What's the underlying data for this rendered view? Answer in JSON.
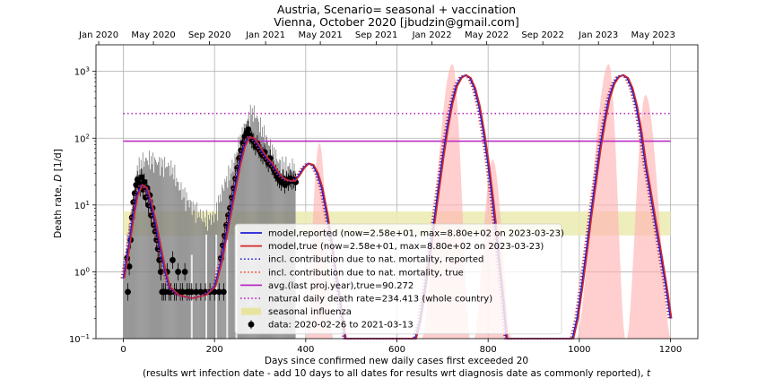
{
  "chart_data": {
    "type": "line",
    "title": "Austria, Scenario= seasonal + vaccination",
    "subtitle": "Vienna, October 2020 [jbudzin@gmail.com]",
    "xlabel": "Days since confirmed new daily cases first exceeded 20",
    "xlabel2": "(results wrt infection date - add 10 days to all dates for results wrt diagnosis date as commonly reported),",
    "xlabel_symbol": "t",
    "ylabel": "Death rate,",
    "ylabel_symbol": "D",
    "ylabel_unit": "[1/d]",
    "xlim": [
      -60,
      1260
    ],
    "ylim": [
      0.1,
      2500
    ],
    "yscale": "log",
    "grid": true,
    "legend_position": "center-left",
    "x_ticks": [
      0,
      200,
      400,
      600,
      800,
      1000,
      1200
    ],
    "y_ticks": [
      {
        "value": 0.1,
        "base": "10",
        "exp": "−1"
      },
      {
        "value": 1,
        "base": "10",
        "exp": "0"
      },
      {
        "value": 10,
        "base": "10",
        "exp": "1"
      },
      {
        "value": 100,
        "base": "10",
        "exp": "2"
      },
      {
        "value": 1000,
        "base": "10",
        "exp": "3"
      }
    ],
    "date_ticks": [
      {
        "x": -54,
        "label": "Jan 2020"
      },
      {
        "x": 66,
        "label": "May 2020"
      },
      {
        "x": 189,
        "label": "Sep 2020"
      },
      {
        "x": 312,
        "label": "Jan 2021"
      },
      {
        "x": 432,
        "label": "May 2021"
      },
      {
        "x": 555,
        "label": "Sep 2021"
      },
      {
        "x": 677,
        "label": "Jan 2022"
      },
      {
        "x": 797,
        "label": "May 2022"
      },
      {
        "x": 920,
        "label": "Sep 2022"
      },
      {
        "x": 1042,
        "label": "Jan 2023"
      },
      {
        "x": 1162,
        "label": "May 2023"
      }
    ],
    "reference_lines": {
      "avg_last_year": 90.272,
      "natural_daily_death_rate": 234.413,
      "influenza_band": [
        3.5,
        8.0
      ],
      "x_range": [
        0,
        1200
      ]
    },
    "data_bar_points": [
      [
        0,
        1.2
      ],
      [
        20,
        10
      ],
      [
        30,
        35
      ],
      [
        40,
        45
      ],
      [
        50,
        48
      ],
      [
        60,
        48
      ],
      [
        70,
        45
      ],
      [
        80,
        42
      ],
      [
        90,
        40
      ],
      [
        100,
        38
      ],
      [
        110,
        32
      ],
      [
        120,
        20
      ],
      [
        140,
        12
      ],
      [
        160,
        8
      ],
      [
        180,
        6
      ],
      [
        200,
        7
      ],
      [
        210,
        12
      ],
      [
        220,
        20
      ],
      [
        240,
        40
      ],
      [
        250,
        70
      ],
      [
        260,
        120
      ],
      [
        270,
        180
      ],
      [
        280,
        260
      ],
      [
        290,
        220
      ],
      [
        300,
        150
      ],
      [
        310,
        110
      ],
      [
        320,
        80
      ],
      [
        330,
        60
      ],
      [
        340,
        45
      ],
      [
        350,
        40
      ],
      [
        360,
        38
      ],
      [
        376,
        38
      ]
    ],
    "data_dots": [
      [
        8,
        1.6
      ],
      [
        10,
        0.5
      ],
      [
        13,
        1.2
      ],
      [
        16,
        3.0
      ],
      [
        19,
        6.5
      ],
      [
        22,
        11
      ],
      [
        25,
        15
      ],
      [
        28,
        20
      ],
      [
        31,
        24
      ],
      [
        34,
        21
      ],
      [
        37,
        18
      ],
      [
        40,
        26
      ],
      [
        43,
        17
      ],
      [
        46,
        22
      ],
      [
        49,
        13
      ],
      [
        52,
        18
      ],
      [
        55,
        10
      ],
      [
        58,
        14
      ],
      [
        61,
        7
      ],
      [
        64,
        9
      ],
      [
        67,
        5
      ],
      [
        70,
        4
      ],
      [
        73,
        3
      ],
      [
        76,
        2.2
      ],
      [
        79,
        1.5
      ],
      [
        82,
        1.0
      ],
      [
        85,
        0.5
      ],
      [
        88,
        0.5
      ],
      [
        92,
        0.5
      ],
      [
        96,
        1.0
      ],
      [
        100,
        0.5
      ],
      [
        104,
        0.5
      ],
      [
        108,
        1.5
      ],
      [
        112,
        0.5
      ],
      [
        116,
        0.5
      ],
      [
        120,
        1.0
      ],
      [
        125,
        0.5
      ],
      [
        130,
        0.5
      ],
      [
        135,
        1.0
      ],
      [
        140,
        0.5
      ],
      [
        145,
        0.5
      ],
      [
        150,
        0.5
      ],
      [
        160,
        0.5
      ],
      [
        170,
        0.5
      ],
      [
        180,
        0.5
      ],
      [
        190,
        0.5
      ],
      [
        200,
        0.5
      ],
      [
        210,
        0.5
      ],
      [
        220,
        0.5
      ],
      [
        214,
        1.6
      ],
      [
        218,
        2.5
      ],
      [
        222,
        3.5
      ],
      [
        226,
        5
      ],
      [
        230,
        7
      ],
      [
        234,
        9
      ],
      [
        238,
        13
      ],
      [
        242,
        18
      ],
      [
        246,
        25
      ],
      [
        250,
        36
      ],
      [
        254,
        50
      ],
      [
        258,
        66
      ],
      [
        262,
        85
      ],
      [
        266,
        105
      ],
      [
        270,
        120
      ],
      [
        274,
        135
      ],
      [
        278,
        110
      ],
      [
        282,
        95
      ],
      [
        286,
        88
      ],
      [
        290,
        75
      ],
      [
        294,
        82
      ],
      [
        298,
        68
      ],
      [
        302,
        60
      ],
      [
        306,
        55
      ],
      [
        310,
        62
      ],
      [
        314,
        48
      ],
      [
        318,
        42
      ],
      [
        322,
        50
      ],
      [
        326,
        38
      ],
      [
        330,
        34
      ],
      [
        334,
        30
      ],
      [
        338,
        26
      ],
      [
        342,
        24
      ],
      [
        346,
        22
      ],
      [
        350,
        25
      ],
      [
        354,
        20
      ],
      [
        358,
        24
      ],
      [
        362,
        22
      ],
      [
        366,
        25
      ],
      [
        370,
        23
      ],
      [
        374,
        24
      ],
      [
        378,
        22
      ]
    ],
    "model_points": [
      [
        0,
        0.8
      ],
      [
        10,
        2
      ],
      [
        20,
        6
      ],
      [
        30,
        14
      ],
      [
        40,
        20
      ],
      [
        50,
        18
      ],
      [
        60,
        11
      ],
      [
        70,
        5.5
      ],
      [
        80,
        2.4
      ],
      [
        90,
        1.1
      ],
      [
        100,
        0.6
      ],
      [
        120,
        0.45
      ],
      [
        150,
        0.4
      ],
      [
        180,
        0.45
      ],
      [
        200,
        0.6
      ],
      [
        215,
        1.5
      ],
      [
        225,
        3.5
      ],
      [
        235,
        8
      ],
      [
        245,
        18
      ],
      [
        255,
        40
      ],
      [
        265,
        75
      ],
      [
        275,
        105
      ],
      [
        285,
        100
      ],
      [
        295,
        80
      ],
      [
        305,
        62
      ],
      [
        315,
        50
      ],
      [
        325,
        42
      ],
      [
        335,
        33
      ],
      [
        345,
        27
      ],
      [
        355,
        24
      ],
      [
        365,
        23
      ],
      [
        375,
        23
      ],
      [
        385,
        28
      ],
      [
        395,
        36
      ],
      [
        405,
        42
      ],
      [
        415,
        40
      ],
      [
        425,
        30
      ],
      [
        435,
        18
      ],
      [
        445,
        8
      ],
      [
        455,
        3.0
      ],
      [
        465,
        1.0
      ],
      [
        472,
        0.5
      ],
      [
        480,
        0.2
      ],
      [
        486,
        0.1
      ],
      [
        640,
        0.1
      ],
      [
        650,
        0.18
      ],
      [
        660,
        0.5
      ],
      [
        670,
        1.5
      ],
      [
        680,
        5
      ],
      [
        690,
        16
      ],
      [
        700,
        50
      ],
      [
        710,
        140
      ],
      [
        720,
        330
      ],
      [
        730,
        600
      ],
      [
        740,
        800
      ],
      [
        750,
        880
      ],
      [
        760,
        800
      ],
      [
        770,
        560
      ],
      [
        780,
        300
      ],
      [
        790,
        120
      ],
      [
        800,
        40
      ],
      [
        810,
        11
      ],
      [
        818,
        3.5
      ],
      [
        826,
        1.0
      ],
      [
        834,
        0.3
      ],
      [
        840,
        0.1
      ],
      [
        985,
        0.1
      ],
      [
        995,
        0.2
      ],
      [
        1005,
        0.6
      ],
      [
        1015,
        2.0
      ],
      [
        1025,
        7
      ],
      [
        1035,
        22
      ],
      [
        1045,
        70
      ],
      [
        1055,
        180
      ],
      [
        1065,
        400
      ],
      [
        1075,
        650
      ],
      [
        1085,
        820
      ],
      [
        1095,
        880
      ],
      [
        1105,
        800
      ],
      [
        1115,
        560
      ],
      [
        1125,
        300
      ],
      [
        1135,
        120
      ],
      [
        1145,
        40
      ],
      [
        1160,
        10
      ],
      [
        1175,
        2.5
      ],
      [
        1190,
        0.6
      ],
      [
        1200,
        0.2
      ]
    ],
    "uncertainty_bands": [
      {
        "x0": 400,
        "x1": 460,
        "peak": 85,
        "xp": 430
      },
      {
        "x0": 655,
        "x1": 760,
        "peak": 1300,
        "xp": 722
      },
      {
        "x0": 770,
        "x1": 850,
        "peak": 48,
        "xp": 810
      },
      {
        "x0": 995,
        "x1": 1100,
        "peak": 1300,
        "xp": 1065
      },
      {
        "x0": 1105,
        "x1": 1200,
        "peak": 450,
        "xp": 1145
      }
    ],
    "series": [
      {
        "name": "model,reported (now=2.58e+01, max=8.80e+02 on 2023-03-23)",
        "color": "#1f1fd6",
        "style": "solid"
      },
      {
        "name": "model,true (now=2.58e+01, max=8.80e+02 on 2023-03-23)",
        "color": "#d62728",
        "style": "solid"
      },
      {
        "name": "incl. contribution due to nat. mortality, reported",
        "color": "#1f1fd6",
        "style": "dotted"
      },
      {
        "name": "incl. contribution due to nat. mortality, true",
        "color": "#ff3b1f",
        "style": "dotted"
      },
      {
        "name": "avg.(last proj.year),true=90.272",
        "color": "#bb2bc4",
        "style": "solid"
      },
      {
        "name": "natural daily death rate=234.413 (whole country)",
        "color": "#bb2bc4",
        "style": "dotted"
      },
      {
        "name": "seasonal influenza",
        "color": "#e8e4a0",
        "style": "band"
      },
      {
        "name": "data: 2020-02-26 to 2021-03-13",
        "color": "#000000",
        "style": "errorbar"
      }
    ]
  },
  "colors": {
    "bars": "#7f7f7f",
    "band": "#ffb3b3",
    "influenza": "#ecebb5",
    "reported": "#1f1fd6",
    "true": "#d62728",
    "natural": "#bb2bc4"
  }
}
